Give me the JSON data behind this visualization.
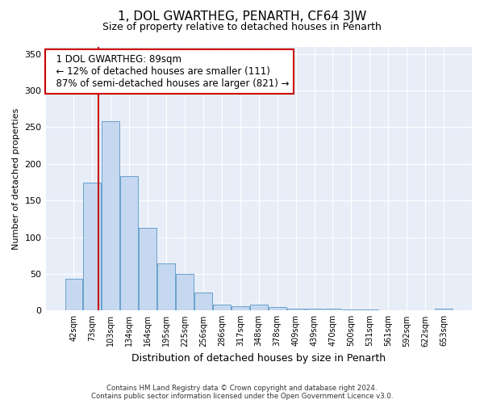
{
  "title": "1, DOL GWARTHEG, PENARTH, CF64 3JW",
  "subtitle": "Size of property relative to detached houses in Penarth",
  "xlabel": "Distribution of detached houses by size in Penarth",
  "ylabel": "Number of detached properties",
  "footer_line1": "Contains HM Land Registry data © Crown copyright and database right 2024.",
  "footer_line2": "Contains public sector information licensed under the Open Government Licence v3.0.",
  "bin_labels": [
    "42sqm",
    "73sqm",
    "103sqm",
    "134sqm",
    "164sqm",
    "195sqm",
    "225sqm",
    "256sqm",
    "286sqm",
    "317sqm",
    "348sqm",
    "378sqm",
    "409sqm",
    "439sqm",
    "470sqm",
    "500sqm",
    "531sqm",
    "561sqm",
    "592sqm",
    "622sqm",
    "653sqm"
  ],
  "bar_values": [
    43,
    174,
    258,
    183,
    113,
    64,
    50,
    25,
    8,
    6,
    8,
    5,
    3,
    2,
    2,
    1,
    1,
    0,
    0,
    0,
    3
  ],
  "bar_color": "#c5d8f0",
  "bar_edge_color": "#6aa0cc",
  "vline_x": 1.35,
  "vline_color": "#cc0000",
  "annotation_text": "  1 DOL GWARTHEG: 89sqm\n  ← 12% of detached houses are smaller (111)\n  87% of semi-detached houses are larger (821) →",
  "annotation_box_color": "#ffffff",
  "annotation_box_edge": "#cc0000",
  "ylim": [
    0,
    360
  ],
  "yticks": [
    0,
    50,
    100,
    150,
    200,
    250,
    300,
    350
  ],
  "plot_background": "#e8eef8",
  "title_fontsize": 11,
  "subtitle_fontsize": 9,
  "tick_fontsize": 7,
  "ylabel_fontsize": 8,
  "xlabel_fontsize": 9
}
